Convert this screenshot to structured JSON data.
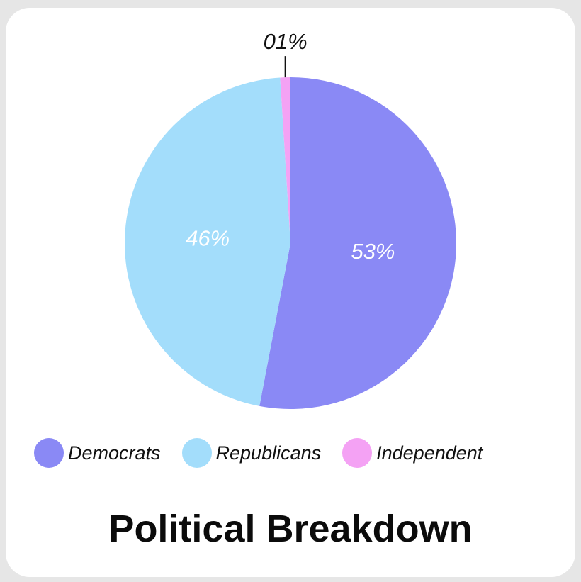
{
  "chart_data": {
    "type": "pie",
    "title": "Political Breakdown",
    "slices": [
      {
        "label": "Democrats",
        "value": 53,
        "display": "53%",
        "color": "#8a89f5"
      },
      {
        "label": "Republicans",
        "value": 46,
        "display": "46%",
        "color": "#a3ddfb"
      },
      {
        "label": "Independent",
        "value": 1,
        "display": "01%",
        "color": "#f4a2f4"
      }
    ],
    "legend_position": "bottom"
  },
  "legend": {
    "items": [
      {
        "label": "Democrats",
        "color": "#8a89f5"
      },
      {
        "label": "Republicans",
        "color": "#a3ddfb"
      },
      {
        "label": "Independent",
        "color": "#f4a2f4"
      }
    ]
  }
}
